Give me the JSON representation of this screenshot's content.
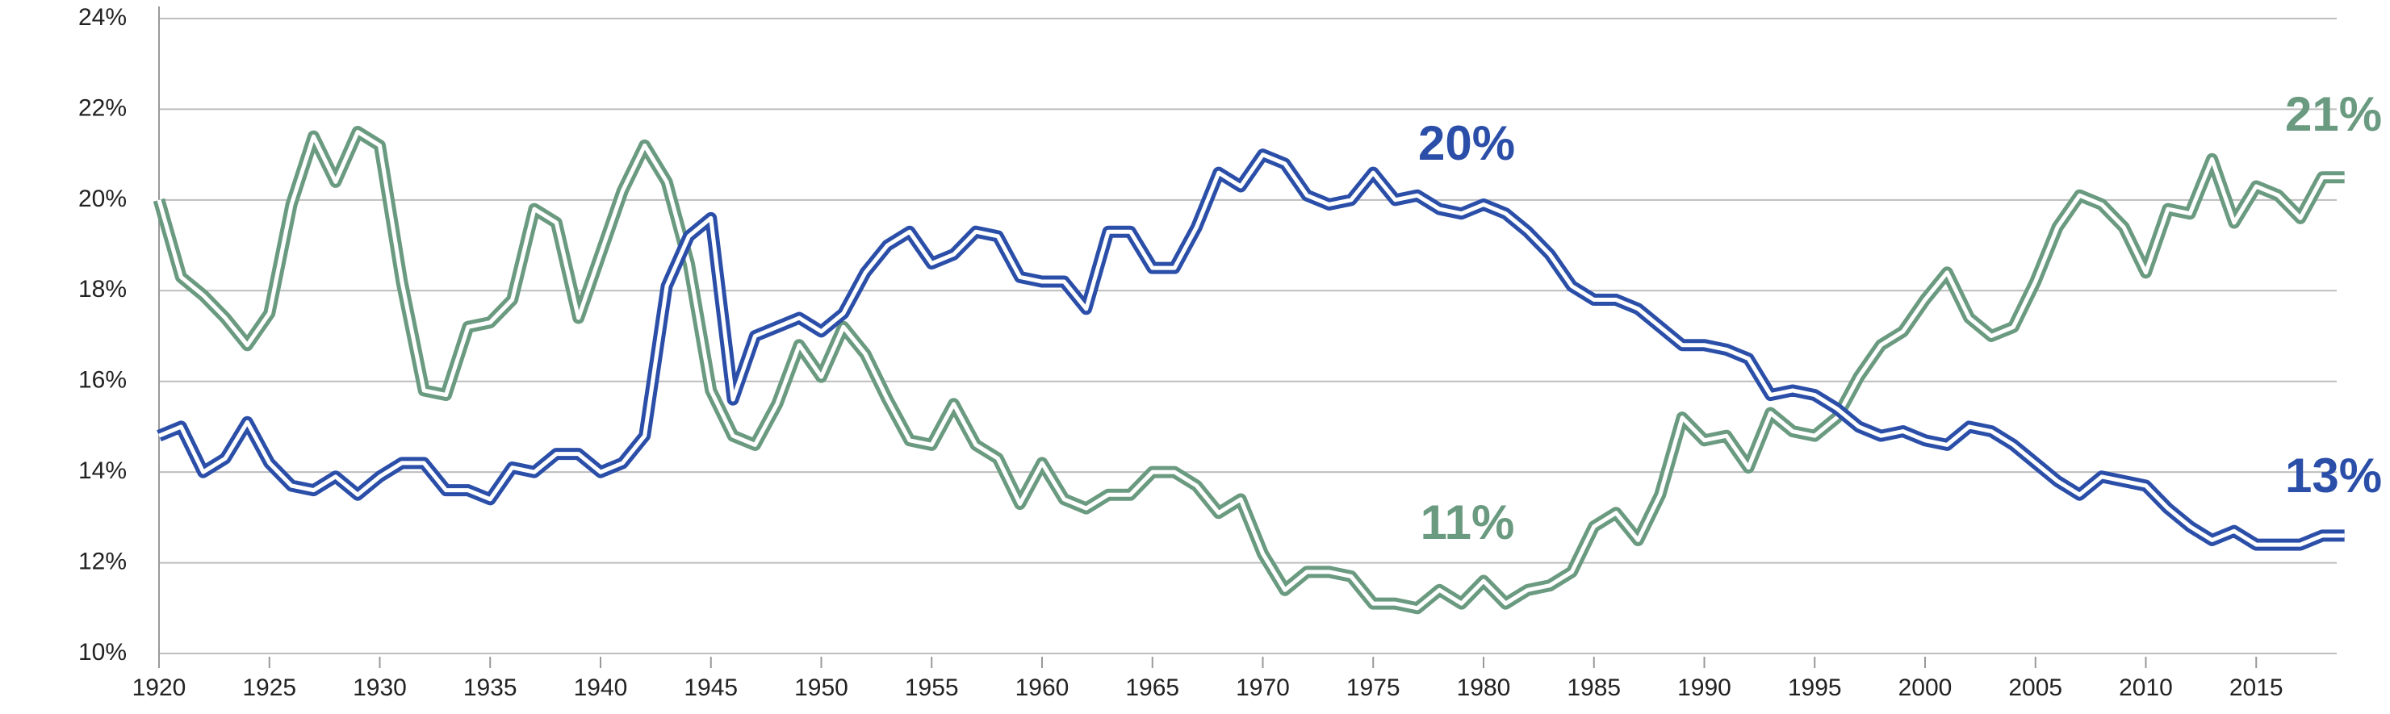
{
  "chart_data": {
    "type": "line",
    "x": [
      1920,
      1921,
      1922,
      1923,
      1924,
      1925,
      1926,
      1927,
      1928,
      1929,
      1930,
      1931,
      1932,
      1933,
      1934,
      1935,
      1936,
      1937,
      1938,
      1939,
      1940,
      1941,
      1942,
      1943,
      1944,
      1945,
      1946,
      1947,
      1948,
      1949,
      1950,
      1951,
      1952,
      1953,
      1954,
      1955,
      1956,
      1957,
      1958,
      1959,
      1960,
      1961,
      1962,
      1963,
      1964,
      1965,
      1966,
      1967,
      1968,
      1969,
      1970,
      1971,
      1972,
      1973,
      1974,
      1975,
      1976,
      1977,
      1978,
      1979,
      1980,
      1981,
      1982,
      1983,
      1984,
      1985,
      1986,
      1987,
      1988,
      1989,
      1990,
      1991,
      1992,
      1993,
      1994,
      1995,
      1996,
      1997,
      1998,
      1999,
      2000,
      2001,
      2002,
      2003,
      2004,
      2005,
      2006,
      2007,
      2008,
      2009,
      2010,
      2011,
      2012,
      2013,
      2014,
      2015,
      2016,
      2017,
      2018,
      2019
    ],
    "series": [
      {
        "color": "#6a9a80",
        "values": [
          20.0,
          18.3,
          17.9,
          17.4,
          16.8,
          17.5,
          19.9,
          21.4,
          20.4,
          21.5,
          21.2,
          18.2,
          15.8,
          15.7,
          17.2,
          17.3,
          17.8,
          19.8,
          19.5,
          17.4,
          18.8,
          20.2,
          21.2,
          20.4,
          18.6,
          15.8,
          14.8,
          14.6,
          15.5,
          16.8,
          16.1,
          17.2,
          16.6,
          15.6,
          14.7,
          14.6,
          15.5,
          14.6,
          14.3,
          13.3,
          14.2,
          13.4,
          13.2,
          13.5,
          13.5,
          14.0,
          14.0,
          13.7,
          13.1,
          13.4,
          12.2,
          11.4,
          11.8,
          11.8,
          11.7,
          11.1,
          11.1,
          11.0,
          11.4,
          11.1,
          11.6,
          11.1,
          11.4,
          11.5,
          11.8,
          12.8,
          13.1,
          12.5,
          13.5,
          15.2,
          14.7,
          14.8,
          14.1,
          15.3,
          14.9,
          14.8,
          15.2,
          16.1,
          16.8,
          17.1,
          17.8,
          18.4,
          17.4,
          17.0,
          17.2,
          18.2,
          19.4,
          20.1,
          19.9,
          19.4,
          18.4,
          19.8,
          19.7,
          20.9,
          19.5,
          20.3,
          20.1,
          19.6,
          20.5,
          20.5
        ]
      },
      {
        "color": "#2b4fa8",
        "values": [
          14.8,
          15.0,
          14.0,
          14.3,
          15.1,
          14.2,
          13.7,
          13.6,
          13.9,
          13.5,
          13.9,
          14.2,
          14.2,
          13.6,
          13.6,
          13.4,
          14.1,
          14.0,
          14.4,
          14.4,
          14.0,
          14.2,
          14.8,
          18.1,
          19.2,
          19.6,
          15.6,
          17.0,
          17.2,
          17.4,
          17.1,
          17.5,
          18.4,
          19.0,
          19.3,
          18.6,
          18.8,
          19.3,
          19.2,
          18.3,
          18.2,
          18.2,
          17.6,
          19.3,
          19.3,
          18.5,
          18.5,
          19.4,
          20.6,
          20.3,
          21.0,
          20.8,
          20.1,
          19.9,
          20.0,
          20.6,
          20.0,
          20.1,
          19.8,
          19.7,
          19.9,
          19.7,
          19.3,
          18.8,
          18.1,
          17.8,
          17.8,
          17.6,
          17.2,
          16.8,
          16.8,
          16.7,
          16.5,
          15.7,
          15.8,
          15.7,
          15.4,
          15.0,
          14.8,
          14.9,
          14.7,
          14.6,
          15.0,
          14.9,
          14.6,
          14.2,
          13.8,
          13.5,
          13.9,
          13.8,
          13.7,
          13.2,
          12.8,
          12.5,
          12.7,
          12.4,
          12.4,
          12.4,
          12.6,
          12.6
        ]
      }
    ],
    "annotations": [
      {
        "text": "20%",
        "color": "#2b4fa8"
      },
      {
        "text": "11%",
        "color": "#6a9a80"
      },
      {
        "text": "21%",
        "color": "#6a9a80"
      },
      {
        "text": "13%",
        "color": "#2b4fa8"
      }
    ],
    "xlim": [
      1920,
      2020
    ],
    "xticks": [
      1920,
      1925,
      1930,
      1935,
      1940,
      1945,
      1950,
      1955,
      1960,
      1965,
      1970,
      1975,
      1980,
      1985,
      1990,
      1995,
      2000,
      2005,
      2010,
      2015
    ],
    "ylim": [
      10,
      24
    ],
    "yticks": [
      {
        "value": 10,
        "label": "10%"
      },
      {
        "value": 12,
        "label": "12%"
      },
      {
        "value": 14,
        "label": "14%"
      },
      {
        "value": 16,
        "label": "16%"
      },
      {
        "value": 18,
        "label": "18%"
      },
      {
        "value": 20,
        "label": "20%"
      },
      {
        "value": 22,
        "label": "22%"
      },
      {
        "value": 24,
        "label": "24%"
      }
    ],
    "grid": true
  }
}
